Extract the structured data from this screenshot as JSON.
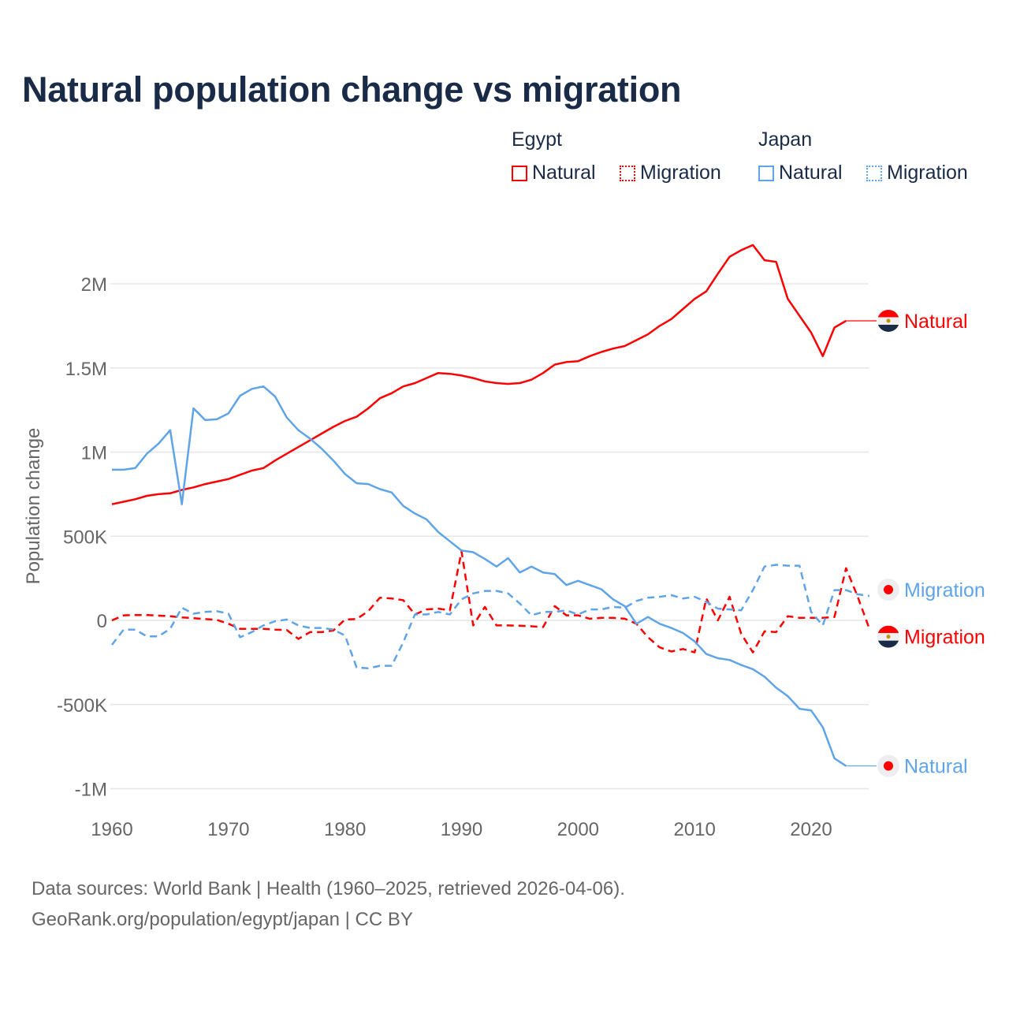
{
  "title": "Natural population change vs migration",
  "legend": {
    "groups": [
      {
        "name": "Egypt",
        "color": "#ff0000",
        "items": [
          "Natural",
          "Migration"
        ]
      },
      {
        "name": "Japan",
        "color": "#5fa4e8",
        "items": [
          "Natural",
          "Migration"
        ]
      }
    ]
  },
  "footer": {
    "line1": "Data sources: World Bank | Health (1960–2025, retrieved 2026-04-06).",
    "line2": "GeoRank.org/population/egypt/japan | CC BY"
  },
  "chart_data": {
    "type": "line",
    "title": "Natural population change vs migration",
    "xlabel": "",
    "ylabel": "Population change",
    "xlim": [
      1960,
      2025
    ],
    "ylim": [
      -1000000,
      2300000
    ],
    "x_ticks": [
      1960,
      1970,
      1980,
      1990,
      2000,
      2010,
      2020
    ],
    "y_ticks": [
      {
        "v": -1000000,
        "label": "-1M"
      },
      {
        "v": -500000,
        "label": "-500K"
      },
      {
        "v": 0,
        "label": "0"
      },
      {
        "v": 500000,
        "label": "500K"
      },
      {
        "v": 1000000,
        "label": "1M"
      },
      {
        "v": 1500000,
        "label": "1.5M"
      },
      {
        "v": 2000000,
        "label": "2M"
      }
    ],
    "grid": true,
    "legend_position": "top-right",
    "x_start": 1960,
    "series": [
      {
        "name": "Egypt Natural",
        "country": "Egypt",
        "kind": "Natural",
        "color": "#ff0000",
        "dashed": false,
        "end_label": "Natural",
        "flag": "egypt",
        "values": [
          690000,
          705000,
          720000,
          740000,
          750000,
          755000,
          775000,
          790000,
          810000,
          825000,
          840000,
          865000,
          890000,
          905000,
          950000,
          990000,
          1030000,
          1070000,
          1110000,
          1150000,
          1185000,
          1210000,
          1260000,
          1320000,
          1350000,
          1390000,
          1410000,
          1440000,
          1470000,
          1465000,
          1455000,
          1440000,
          1420000,
          1410000,
          1405000,
          1410000,
          1430000,
          1470000,
          1520000,
          1535000,
          1540000,
          1570000,
          1595000,
          1615000,
          1630000,
          1665000,
          1700000,
          1750000,
          1790000,
          1850000,
          1910000,
          1955000,
          2060000,
          2160000,
          2200000,
          2230000,
          2140000,
          2130000,
          1910000,
          1810000,
          1710000,
          1570000,
          1740000,
          1780000,
          1780000,
          1780000
        ]
      },
      {
        "name": "Egypt Migration",
        "country": "Egypt",
        "kind": "Migration",
        "color": "#ff0000",
        "dashed": true,
        "end_label": "Migration",
        "flag": "egypt",
        "values": [
          0,
          30000,
          32000,
          32000,
          28000,
          25000,
          18000,
          13000,
          8000,
          3000,
          -20000,
          -50000,
          -50000,
          -50000,
          -55000,
          -57000,
          -110000,
          -70000,
          -70000,
          -60000,
          5000,
          8000,
          55000,
          135000,
          130000,
          120000,
          35000,
          65000,
          70000,
          60000,
          410000,
          -30000,
          80000,
          -30000,
          -30000,
          -32000,
          -35000,
          -40000,
          85000,
          30000,
          30000,
          10000,
          15000,
          15000,
          10000,
          -20000,
          -100000,
          -160000,
          -185000,
          -170000,
          -190000,
          130000,
          0,
          140000,
          -80000,
          -190000,
          -65000,
          -70000,
          25000,
          15000,
          15000,
          15000,
          20000,
          310000,
          140000,
          -50000
        ]
      },
      {
        "name": "Japan Natural",
        "country": "Japan",
        "kind": "Natural",
        "color": "#5fa4e8",
        "dashed": false,
        "end_label": "Natural",
        "flag": "japan",
        "values": [
          895000,
          895000,
          905000,
          990000,
          1050000,
          1130000,
          690000,
          1260000,
          1190000,
          1195000,
          1230000,
          1335000,
          1375000,
          1390000,
          1330000,
          1205000,
          1130000,
          1080000,
          1020000,
          950000,
          870000,
          815000,
          810000,
          780000,
          760000,
          680000,
          635000,
          600000,
          525000,
          470000,
          415000,
          405000,
          365000,
          320000,
          370000,
          285000,
          320000,
          285000,
          275000,
          210000,
          235000,
          210000,
          185000,
          125000,
          85000,
          -20000,
          20000,
          -20000,
          -45000,
          -75000,
          -125000,
          -200000,
          -225000,
          -235000,
          -265000,
          -290000,
          -335000,
          -400000,
          -450000,
          -525000,
          -535000,
          -635000,
          -820000,
          -865000,
          -865000,
          -865000
        ]
      },
      {
        "name": "Japan Migration",
        "country": "Japan",
        "kind": "Migration",
        "color": "#5fa4e8",
        "dashed": true,
        "end_label": "Migration",
        "flag": "japan",
        "values": [
          -145000,
          -55000,
          -55000,
          -95000,
          -95000,
          -50000,
          75000,
          40000,
          50000,
          55000,
          40000,
          -100000,
          -70000,
          -30000,
          -5000,
          5000,
          -30000,
          -45000,
          -45000,
          -55000,
          -90000,
          -280000,
          -285000,
          -270000,
          -270000,
          -130000,
          35000,
          35000,
          50000,
          35000,
          125000,
          160000,
          175000,
          175000,
          160000,
          100000,
          30000,
          50000,
          50000,
          60000,
          35000,
          65000,
          65000,
          80000,
          75000,
          115000,
          135000,
          140000,
          150000,
          130000,
          140000,
          110000,
          70000,
          65000,
          60000,
          180000,
          320000,
          330000,
          325000,
          325000,
          50000,
          -30000,
          180000,
          180000,
          155000,
          145000
        ]
      }
    ]
  }
}
